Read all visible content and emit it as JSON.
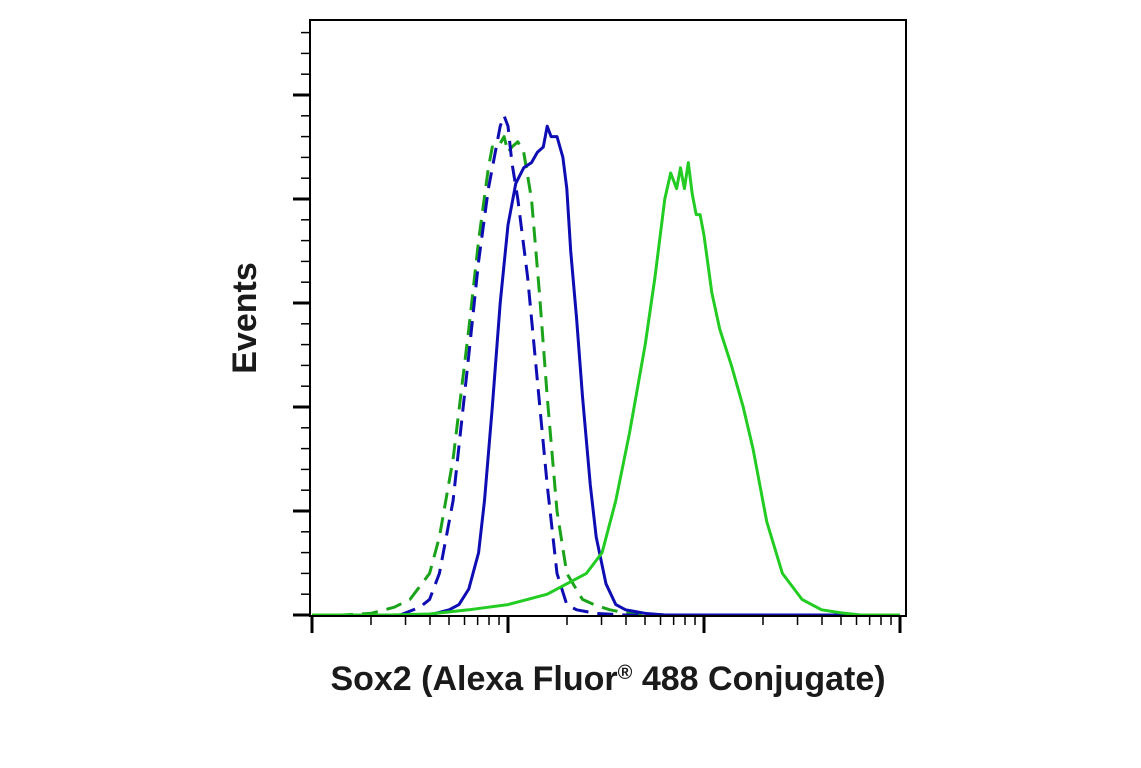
{
  "chart_data": {
    "type": "line",
    "title": "",
    "xlabel": "Sox2 (Alexa Fluor",
    "xlabel_superscript": "®",
    "xlabel_suffix": " 488 Conjugate)",
    "ylabel": "Events",
    "x_scale": "log",
    "x_decades": 3,
    "y_major_ticks": 6,
    "ylim": [
      0,
      100
    ],
    "grid": false,
    "legend": "none",
    "series": [
      {
        "color": "#1aa31a",
        "style": "dashed",
        "x": [
          0.0,
          0.15,
          0.3,
          0.42,
          0.5,
          0.6,
          0.65,
          0.72,
          0.8,
          0.85,
          0.9,
          0.92,
          0.95,
          0.98,
          1.0,
          1.02,
          1.05,
          1.08,
          1.12,
          1.16,
          1.2,
          1.25,
          1.3,
          1.38,
          1.45,
          1.52,
          1.6,
          1.7,
          1.8,
          1.9,
          2.0,
          2.2,
          2.5,
          3.0
        ],
        "y": [
          0,
          0,
          0.3,
          1.5,
          3,
          8,
          15,
          30,
          55,
          72,
          86,
          90,
          90,
          92,
          89,
          90,
          91,
          89,
          80,
          62,
          42,
          20,
          8,
          3,
          1.8,
          1,
          0.4,
          0.2,
          0,
          0,
          0,
          0,
          0,
          0
        ]
      },
      {
        "color": "#0d0db3",
        "style": "dashed",
        "x": [
          0.45,
          0.55,
          0.6,
          0.65,
          0.72,
          0.8,
          0.85,
          0.9,
          0.93,
          0.96,
          0.98,
          1.0,
          1.02,
          1.05,
          1.1,
          1.15,
          1.2,
          1.25,
          1.3,
          1.35,
          1.45,
          1.6,
          1.8,
          2.0,
          2.5,
          3.0
        ],
        "y": [
          0,
          1.5,
          3,
          8,
          22,
          50,
          68,
          82,
          88,
          94,
          96,
          94,
          87,
          80,
          65,
          45,
          25,
          8,
          2,
          1,
          0.3,
          0,
          0,
          0,
          0,
          0
        ]
      },
      {
        "color": "#0d0db3",
        "style": "solid",
        "x": [
          0.6,
          0.7,
          0.75,
          0.8,
          0.85,
          0.88,
          0.92,
          0.96,
          1.0,
          1.04,
          1.08,
          1.12,
          1.15,
          1.18,
          1.2,
          1.22,
          1.25,
          1.28,
          1.3,
          1.32,
          1.35,
          1.38,
          1.42,
          1.45,
          1.5,
          1.55,
          1.6,
          1.7,
          1.8,
          2.0,
          2.5,
          3.0
        ],
        "y": [
          0,
          1,
          2,
          5,
          12,
          22,
          40,
          60,
          75,
          83,
          86,
          87,
          89,
          90,
          94,
          92,
          92,
          88,
          82,
          70,
          57,
          42,
          25,
          15,
          6,
          2,
          1,
          0.3,
          0,
          0,
          0,
          0
        ]
      },
      {
        "color": "#22cc22",
        "style": "solid",
        "x": [
          0.0,
          0.2,
          0.4,
          0.6,
          0.8,
          0.9,
          1.0,
          1.1,
          1.2,
          1.3,
          1.4,
          1.48,
          1.55,
          1.62,
          1.7,
          1.75,
          1.8,
          1.83,
          1.86,
          1.88,
          1.9,
          1.92,
          1.94,
          1.96,
          1.98,
          2.0,
          2.04,
          2.08,
          2.14,
          2.2,
          2.25,
          2.32,
          2.4,
          2.5,
          2.6,
          2.7,
          2.8,
          3.0
        ],
        "y": [
          0,
          0,
          0,
          0.2,
          1,
          1.5,
          2,
          3,
          4,
          6,
          8,
          12,
          22,
          35,
          52,
          65,
          80,
          85,
          82,
          86,
          82,
          87,
          81,
          77,
          77,
          73,
          62,
          55,
          48,
          40,
          32,
          18,
          8,
          3,
          1,
          0.4,
          0,
          0
        ]
      }
    ]
  }
}
